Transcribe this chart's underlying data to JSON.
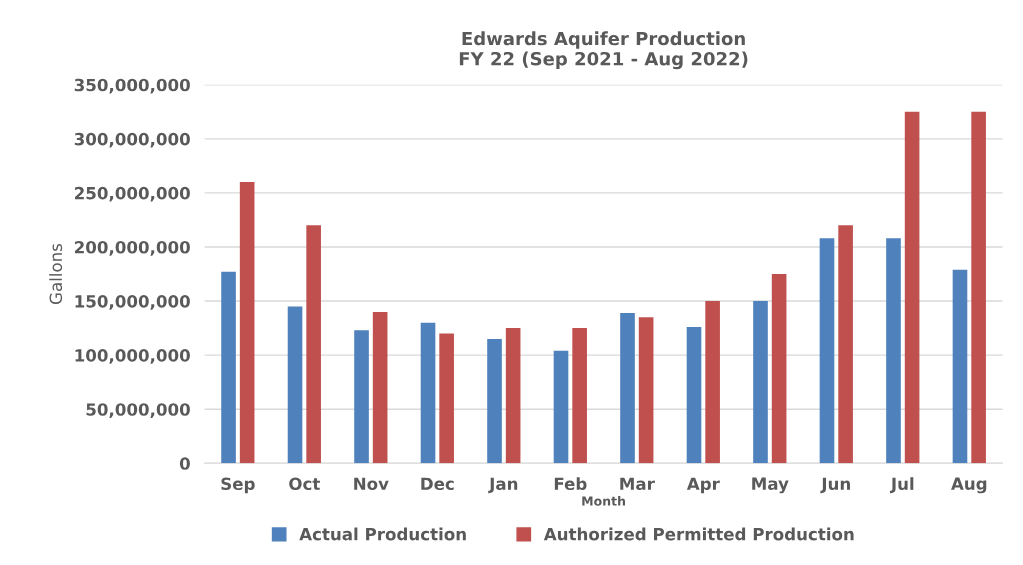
{
  "chart_data": {
    "type": "bar",
    "title": "Edwards Aquifer Production\nFY 22 (Sep 2021 - Aug 2022)",
    "xlabel": "Month",
    "ylabel": "Gallons",
    "categories": [
      "Sep",
      "Oct",
      "Nov",
      "Dec",
      "Jan",
      "Feb",
      "Mar",
      "Apr",
      "May",
      "Jun",
      "Jul",
      "Aug"
    ],
    "series": [
      {
        "name": "Actual Production",
        "color": "#4f81bd",
        "values": [
          177000000,
          145000000,
          123000000,
          130000000,
          115000000,
          104000000,
          139000000,
          126000000,
          150000000,
          208000000,
          208000000,
          179000000
        ]
      },
      {
        "name": "Authorized Permitted Production",
        "color": "#c0504d",
        "values": [
          260000000,
          220000000,
          140000000,
          120000000,
          125000000,
          125000000,
          135000000,
          150000000,
          175000000,
          220000000,
          325000000,
          325000000
        ]
      }
    ],
    "ylim": [
      0,
      350000000
    ],
    "yticks": [
      {
        "value": 0,
        "label": "0"
      },
      {
        "value": 50000000,
        "label": "50,000,000"
      },
      {
        "value": 100000000,
        "label": "100,000,000"
      },
      {
        "value": 150000000,
        "label": "150,000,000"
      },
      {
        "value": 200000000,
        "label": "200,000,000"
      },
      {
        "value": 250000000,
        "label": "250,000,000"
      },
      {
        "value": 300000000,
        "label": "300,000,000"
      },
      {
        "value": 350000000,
        "label": "350,000,000"
      }
    ],
    "grid": "y",
    "legend": "bottom"
  }
}
